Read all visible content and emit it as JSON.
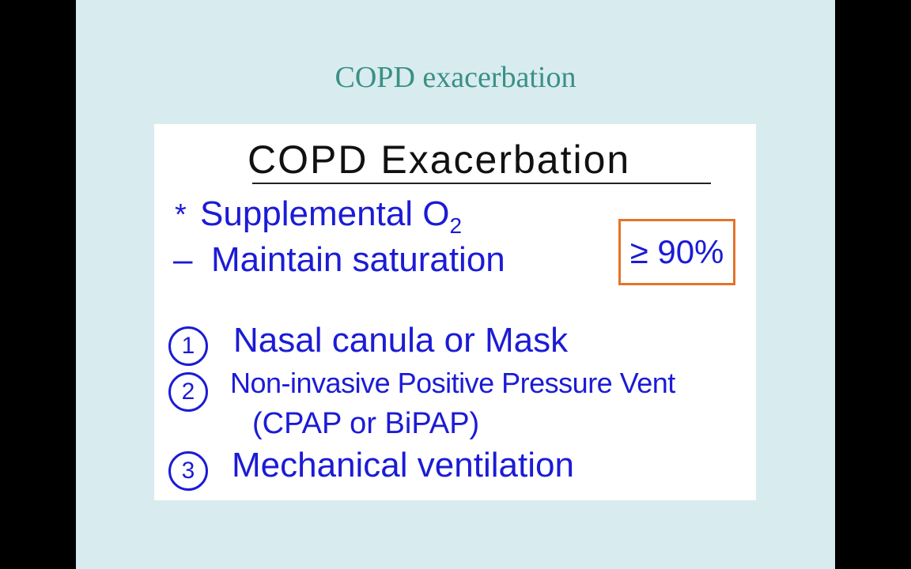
{
  "slide": {
    "title": "COPD exacerbation",
    "whiteboard": {
      "heading": "COPD Exacerbation",
      "bullet": "*",
      "oxygen": {
        "text": "Supplemental O",
        "subscript": "2"
      },
      "saturation": {
        "dash": "–",
        "text": "Maintain saturation",
        "target": "≥ 90%"
      },
      "options": [
        {
          "number": "1",
          "text": "Nasal canula or Mask"
        },
        {
          "number": "2",
          "text": "Non-invasive Positive Pressure Vent",
          "note": "(CPAP or BiPAP)"
        },
        {
          "number": "3",
          "text": "Mechanical ventilation"
        }
      ]
    }
  }
}
